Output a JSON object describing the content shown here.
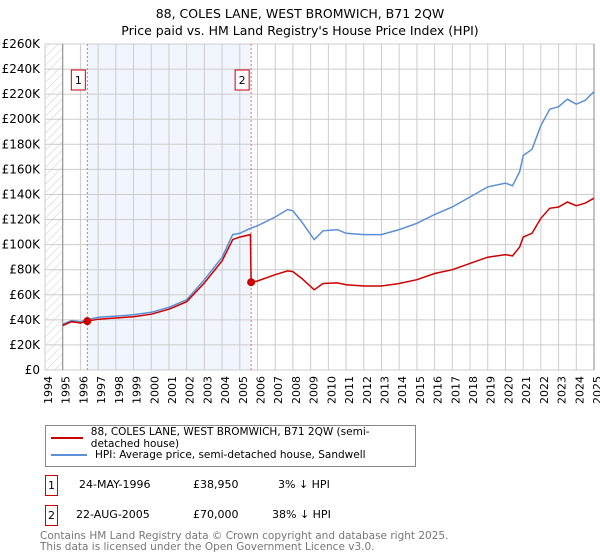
{
  "chart_data": {
    "type": "line",
    "title": "88, COLES LANE, WEST BROMWICH, B71 2QW",
    "subtitle": "Price paid vs. HM Land Registry's House Price Index (HPI)",
    "xlim": [
      1994,
      2025
    ],
    "ylim": [
      0,
      260000
    ],
    "x_ticks": [
      "1994",
      "1995",
      "1996",
      "1997",
      "1998",
      "1999",
      "2000",
      "2001",
      "2002",
      "2003",
      "2004",
      "2005",
      "2006",
      "2007",
      "2008",
      "2009",
      "2010",
      "2011",
      "2012",
      "2013",
      "2014",
      "2015",
      "2016",
      "2017",
      "2018",
      "2019",
      "2020",
      "2021",
      "2022",
      "2023",
      "2024",
      "2025"
    ],
    "y_ticks": [
      {
        "v": 0,
        "label": "£0"
      },
      {
        "v": 20000,
        "label": "£20K"
      },
      {
        "v": 40000,
        "label": "£40K"
      },
      {
        "v": 60000,
        "label": "£60K"
      },
      {
        "v": 80000,
        "label": "£80K"
      },
      {
        "v": 100000,
        "label": "£100K"
      },
      {
        "v": 120000,
        "label": "£120K"
      },
      {
        "v": 140000,
        "label": "£140K"
      },
      {
        "v": 160000,
        "label": "£160K"
      },
      {
        "v": 180000,
        "label": "£180K"
      },
      {
        "v": 200000,
        "label": "£200K"
      },
      {
        "v": 220000,
        "label": "£220K"
      },
      {
        "v": 240000,
        "label": "£240K"
      },
      {
        "v": 260000,
        "label": "£260K"
      }
    ],
    "grid": true,
    "series": [
      {
        "name": "88, COLES LANE, WEST BROMWICH, B71 2QW (semi-detached house)",
        "color": "#cc0000",
        "x": [
          1995,
          1995.5,
          1996,
          1996.4,
          1997,
          1998,
          1999,
          2000,
          2001,
          2002,
          2003,
          2004,
          2004.6,
          2005,
          2005.6,
          2005.64,
          2006,
          2007,
          2007.7,
          2008,
          2008.5,
          2009.2,
          2009.7,
          2010.5,
          2011,
          2012,
          2013,
          2014,
          2015,
          2016,
          2017,
          2018,
          2019,
          2020,
          2020.4,
          2020.8,
          2021,
          2021.5,
          2022,
          2022.5,
          2023,
          2023.5,
          2024,
          2024.5,
          2025
        ],
        "y": [
          35500,
          38500,
          37500,
          38950,
          40500,
          41500,
          42500,
          44500,
          48500,
          54500,
          69500,
          87000,
          104000,
          106000,
          108000,
          70000,
          71000,
          76000,
          79000,
          78500,
          73000,
          64000,
          69000,
          69500,
          68000,
          67000,
          67000,
          69000,
          72000,
          77000,
          80000,
          85000,
          90000,
          92000,
          91000,
          98000,
          106000,
          109000,
          121000,
          129000,
          130000,
          134000,
          131000,
          133000,
          137000
        ]
      },
      {
        "name": "HPI: Average price, semi-detached house, Sandwell",
        "color": "#5b8fd6",
        "x": [
          1995,
          1995.5,
          1996,
          1996.4,
          1997,
          1998,
          1999,
          2000,
          2001,
          2002,
          2003,
          2004,
          2004.6,
          2005,
          2005.6,
          2006,
          2007,
          2007.7,
          2008,
          2008.5,
          2009.2,
          2009.7,
          2010.5,
          2011,
          2012,
          2013,
          2014,
          2015,
          2016,
          2017,
          2018,
          2019,
          2020,
          2020.4,
          2020.8,
          2021,
          2021.5,
          2022,
          2022.5,
          2023,
          2023.5,
          2024,
          2024.5,
          2025
        ],
        "y": [
          36500,
          39500,
          38500,
          40000,
          42000,
          43000,
          44000,
          46000,
          50000,
          56000,
          72000,
          90000,
          108000,
          109000,
          113000,
          115000,
          122000,
          128000,
          127000,
          118000,
          104000,
          111000,
          112000,
          109000,
          108000,
          108000,
          112000,
          117000,
          124000,
          130000,
          138000,
          146000,
          149000,
          147000,
          158000,
          171000,
          176000,
          195000,
          208000,
          210000,
          216000,
          212000,
          215000,
          222000
        ]
      }
    ],
    "sales": [
      {
        "label": "1",
        "x": 1996.39,
        "y": 38950
      },
      {
        "label": "2",
        "x": 2005.64,
        "y": 70000
      }
    ]
  },
  "title_line1": "88, COLES LANE, WEST BROMWICH, B71 2QW",
  "title_line2": "Price paid vs. HM Land Registry's House Price Index (HPI)",
  "legend": {
    "red": "88, COLES LANE, WEST BROMWICH, B71 2QW (semi-detached house)",
    "blue": "HPI: Average price, semi-detached house, Sandwell"
  },
  "transactions": [
    {
      "num": "1",
      "date": "24-MAY-1996",
      "price": "£38,950",
      "hpi": "3% ↓ HPI"
    },
    {
      "num": "2",
      "date": "22-AUG-2005",
      "price": "£70,000",
      "hpi": "38% ↓ HPI"
    }
  ],
  "footer": {
    "line1": "Contains HM Land Registry data © Crown copyright and database right 2025.",
    "line2": "This data is licensed under the Open Government Licence v3.0."
  }
}
